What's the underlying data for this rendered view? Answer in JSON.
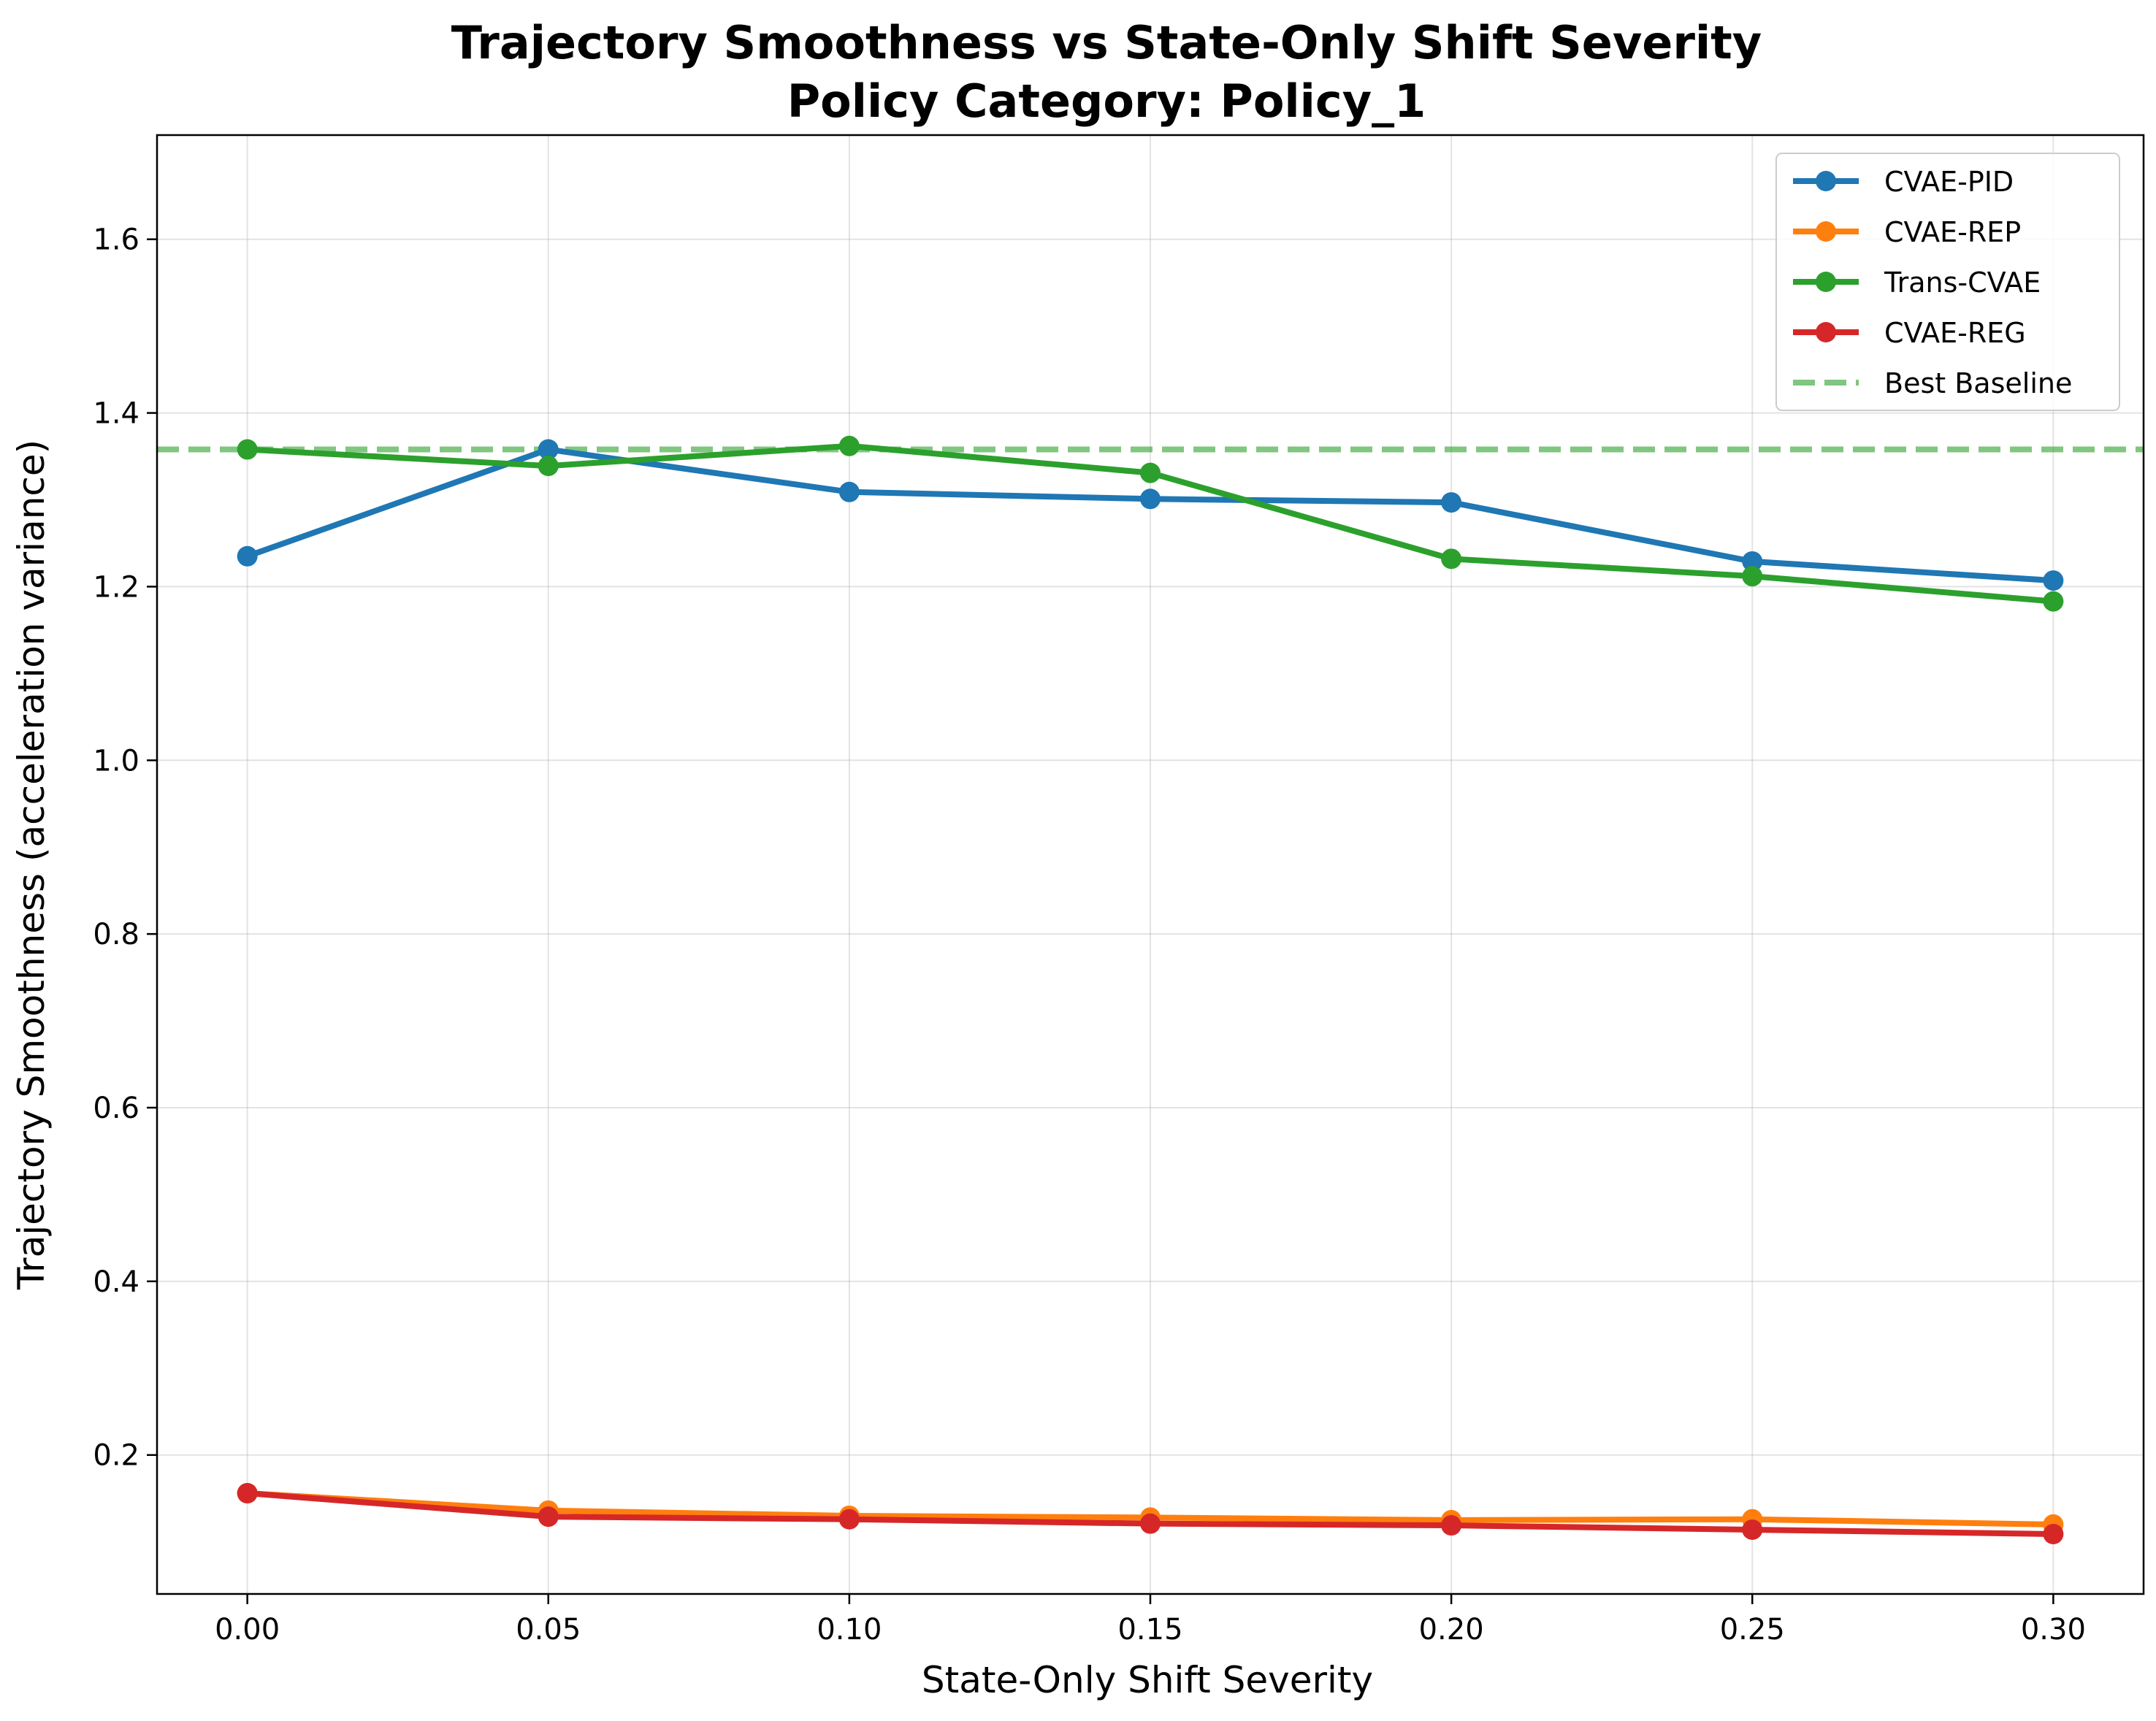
{
  "chart_data": {
    "type": "line",
    "title": "Trajectory Smoothness vs State-Only Shift Severity",
    "subtitle": "Policy Category: Policy_1",
    "xlabel": "State-Only Shift Severity",
    "ylabel": "Trajectory Smoothness (acceleration variance)",
    "xlim": [
      -0.015,
      0.315
    ],
    "ylim": [
      0.04,
      1.72
    ],
    "x": [
      0.0,
      0.05,
      0.1,
      0.15,
      0.2,
      0.25,
      0.3
    ],
    "x_ticks": [
      "0.00",
      "0.05",
      "0.10",
      "0.15",
      "0.20",
      "0.25",
      "0.30"
    ],
    "y_ticks": [
      "0.2",
      "0.4",
      "0.6",
      "0.8",
      "1.0",
      "1.2",
      "1.4",
      "1.6"
    ],
    "y_tick_values": [
      0.2,
      0.4,
      0.6,
      0.8,
      1.0,
      1.2,
      1.4,
      1.6
    ],
    "grid": true,
    "legend_position": "top-right",
    "series": [
      {
        "name": "CVAE-PID",
        "color": "#1f77b4",
        "values": [
          1.235,
          1.358,
          1.309,
          1.301,
          1.297,
          1.229,
          1.207
        ]
      },
      {
        "name": "CVAE-REP",
        "color": "#ff7f0e",
        "values": [
          0.156,
          0.136,
          0.13,
          0.128,
          0.125,
          0.126,
          0.12
        ]
      },
      {
        "name": "Trans-CVAE",
        "color": "#2ca02c",
        "values": [
          1.358,
          1.339,
          1.362,
          1.331,
          1.232,
          1.212,
          1.183
        ]
      },
      {
        "name": "CVAE-REG",
        "color": "#d62728",
        "values": [
          0.156,
          0.129,
          0.126,
          0.121,
          0.119,
          0.114,
          0.109
        ]
      }
    ],
    "reference_line": {
      "name": "Best Baseline",
      "value": 1.358,
      "color": "#2ca02c",
      "style": "dashed"
    }
  }
}
